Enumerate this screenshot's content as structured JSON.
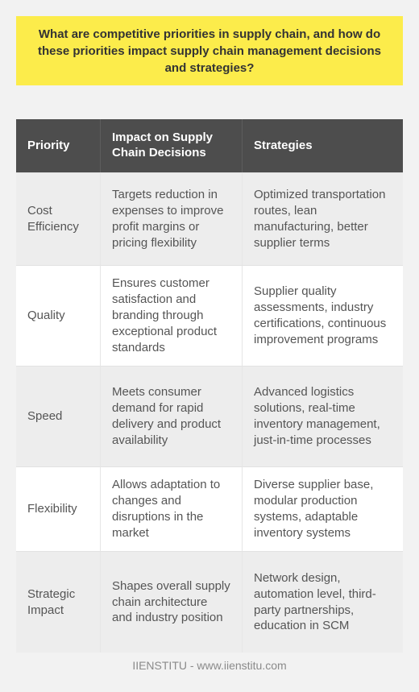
{
  "title": "What are competitive priorities in supply chain, and how do these priorities impact supply chain management decisions and strategies?",
  "table": {
    "headers": [
      "Priority",
      "Impact on Supply Chain Decisions",
      "Strategies"
    ],
    "rows": [
      {
        "priority": "Cost Efficiency",
        "impact": "Targets reduction in expenses to improve profit margins or pricing flexibility",
        "strategies": "Optimized transportation routes, lean manufacturing, better supplier terms"
      },
      {
        "priority": "Quality",
        "impact": "Ensures customer satisfaction and branding through exceptional product standards",
        "strategies": "Supplier quality assessments, industry certifications, continuous improvement programs"
      },
      {
        "priority": "Speed",
        "impact": "Meets consumer demand for rapid delivery and product availability",
        "strategies": "Advanced logistics solutions, real-time inventory management, just-in-time processes"
      },
      {
        "priority": "Flexibility",
        "impact": "Allows adaptation to changes and disruptions in the market",
        "strategies": "Diverse supplier base, modular production systems, adaptable inventory systems"
      },
      {
        "priority": "Strategic Impact",
        "impact": "Shapes overall supply chain architecture and industry position",
        "strategies": "Network design, automation level, third-party partnerships, education in SCM"
      }
    ]
  },
  "footer": "IIENSTITU - www.iienstitu.com"
}
